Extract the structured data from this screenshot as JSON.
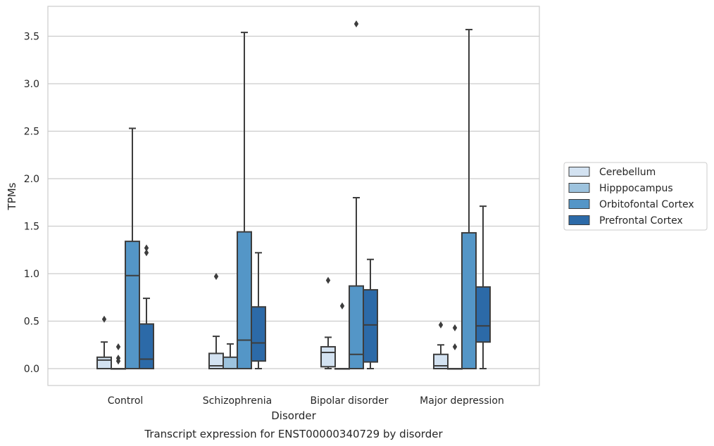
{
  "chart_data": {
    "type": "box",
    "title": "",
    "caption": "Transcript expression for ENST00000340729 by disorder",
    "xlabel": "Disorder",
    "ylabel": "TPMs",
    "ylim": [
      -0.18,
      3.8
    ],
    "yticks": [
      0.0,
      0.5,
      1.0,
      1.5,
      2.0,
      2.5,
      3.0,
      3.5
    ],
    "ytick_labels": [
      "0.0",
      "0.5",
      "1.0",
      "1.5",
      "2.0",
      "2.5",
      "3.0",
      "3.5"
    ],
    "grid": "horizontal",
    "legend_position": "right",
    "categories": [
      "Control",
      "Schizophrenia",
      "Bipolar disorder",
      "Major depression"
    ],
    "series": [
      {
        "name": "Cerebellum",
        "color": "#d3e2f1",
        "boxes": [
          {
            "whisker_low": 0.0,
            "q1": 0.0,
            "median": 0.09,
            "q3": 0.12,
            "whisker_high": 0.28,
            "outliers": [
              0.52
            ]
          },
          {
            "whisker_low": 0.0,
            "q1": 0.0,
            "median": 0.03,
            "q3": 0.16,
            "whisker_high": 0.34,
            "outliers": [
              0.97
            ]
          },
          {
            "whisker_low": 0.0,
            "q1": 0.02,
            "median": 0.17,
            "q3": 0.23,
            "whisker_high": 0.33,
            "outliers": [
              0.93
            ]
          },
          {
            "whisker_low": 0.0,
            "q1": 0.0,
            "median": 0.03,
            "q3": 0.15,
            "whisker_high": 0.25,
            "outliers": [
              0.46
            ]
          }
        ]
      },
      {
        "name": "Hipppocampus",
        "color": "#9dc3de",
        "boxes": [
          {
            "whisker_low": 0.0,
            "q1": 0.0,
            "median": 0.0,
            "q3": 0.0,
            "whisker_high": 0.0,
            "outliers": [
              0.08,
              0.11,
              0.23
            ]
          },
          {
            "whisker_low": 0.0,
            "q1": 0.0,
            "median": 0.0,
            "q3": 0.12,
            "whisker_high": 0.26,
            "outliers": []
          },
          {
            "whisker_low": 0.0,
            "q1": 0.0,
            "median": 0.0,
            "q3": 0.0,
            "whisker_high": 0.0,
            "outliers": [
              0.66
            ]
          },
          {
            "whisker_low": 0.0,
            "q1": 0.0,
            "median": 0.0,
            "q3": 0.0,
            "whisker_high": 0.0,
            "outliers": [
              0.23,
              0.43
            ]
          }
        ]
      },
      {
        "name": "Orbitofontal Cortex",
        "color": "#5496c7",
        "boxes": [
          {
            "whisker_low": 0.0,
            "q1": 0.0,
            "median": 0.98,
            "q3": 1.34,
            "whisker_high": 2.53,
            "outliers": []
          },
          {
            "whisker_low": 0.0,
            "q1": 0.0,
            "median": 0.3,
            "q3": 1.44,
            "whisker_high": 3.54,
            "outliers": []
          },
          {
            "whisker_low": 0.0,
            "q1": 0.0,
            "median": 0.15,
            "q3": 0.87,
            "whisker_high": 1.8,
            "outliers": [
              3.63
            ]
          },
          {
            "whisker_low": 0.0,
            "q1": 0.0,
            "median": 0.0,
            "q3": 1.43,
            "whisker_high": 3.57,
            "outliers": []
          }
        ]
      },
      {
        "name": "Prefrontal Cortex",
        "color": "#2c6aa8",
        "boxes": [
          {
            "whisker_low": 0.0,
            "q1": 0.0,
            "median": 0.1,
            "q3": 0.47,
            "whisker_high": 0.74,
            "outliers": [
              1.22,
              1.27
            ]
          },
          {
            "whisker_low": 0.0,
            "q1": 0.08,
            "median": 0.27,
            "q3": 0.65,
            "whisker_high": 1.22,
            "outliers": []
          },
          {
            "whisker_low": 0.0,
            "q1": 0.07,
            "median": 0.46,
            "q3": 0.83,
            "whisker_high": 1.15,
            "outliers": []
          },
          {
            "whisker_low": 0.0,
            "q1": 0.28,
            "median": 0.45,
            "q3": 0.86,
            "whisker_high": 1.71,
            "outliers": []
          }
        ]
      }
    ]
  }
}
